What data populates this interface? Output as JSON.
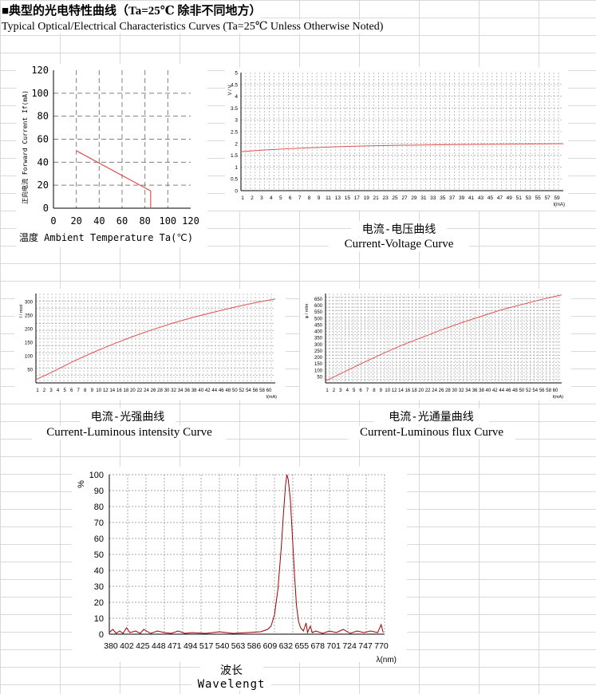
{
  "header": {
    "title_cn": "■典型的光电特性曲线（Ta=25℃ 除非不同地方）",
    "title_en": "Typical Optical/Electrical Characteristics Curves (Ta=25℃ Unless Otherwise Noted)"
  },
  "colors": {
    "curve": "#e05050",
    "dark_curve": "#a00000",
    "grid": "#808080"
  },
  "chart_data": [
    {
      "id": "derating",
      "type": "line",
      "xlabel": "温度 Ambient Temperature Ta(℃)",
      "ylabel": "正向电流 Forward Current If(mA)",
      "xlim": [
        0,
        120
      ],
      "ylim": [
        0,
        120
      ],
      "xticks": [
        "0",
        "20",
        "40",
        "60",
        "80",
        "100",
        "120"
      ],
      "yticks": [
        "0",
        "20",
        "40",
        "60",
        "80",
        "100",
        "120"
      ],
      "grid": true,
      "series": [
        {
          "points": [
            [
              20,
              50
            ],
            [
              85,
              15
            ],
            [
              85,
              0
            ]
          ]
        }
      ]
    },
    {
      "id": "iv",
      "type": "line",
      "title_cn": "电流-电压曲线",
      "title_en": "Current-Voltage Curve",
      "xlabel": "I(mA)",
      "ylabel": "V / V",
      "xlim": [
        1,
        60
      ],
      "ylim": [
        0,
        5
      ],
      "xticks": [
        "1",
        "2",
        "3",
        "4",
        "5",
        "6",
        "7",
        "8",
        "9",
        "11",
        "13",
        "15",
        "17",
        "19",
        "21",
        "23",
        "25",
        "27",
        "29",
        "31",
        "33",
        "35",
        "37",
        "39",
        "41",
        "43",
        "45",
        "47",
        "49",
        "51",
        "53",
        "55",
        "57",
        "59"
      ],
      "yticks": [
        "0",
        "0.5",
        "1",
        "1.5",
        "2",
        "2.5",
        "3",
        "3.5",
        "4",
        "4.5",
        "5"
      ],
      "grid": true,
      "series": [
        {
          "points": [
            [
              1,
              1.65
            ],
            [
              5,
              1.72
            ],
            [
              10,
              1.78
            ],
            [
              15,
              1.83
            ],
            [
              20,
              1.87
            ],
            [
              25,
              1.9
            ],
            [
              30,
              1.92
            ],
            [
              40,
              1.95
            ],
            [
              50,
              1.97
            ],
            [
              60,
              1.99
            ]
          ]
        }
      ]
    },
    {
      "id": "li",
      "type": "line",
      "title_cn": "电流-光强曲线",
      "title_en": "Current-Luminous intensity Curve",
      "xlabel": "I(mA)",
      "ylabel": "I / mcd",
      "xlim": [
        1,
        60
      ],
      "ylim": [
        0,
        330
      ],
      "xticks": [
        "1",
        "2",
        "3",
        "4",
        "5",
        "6",
        "7",
        "8",
        "9",
        "10",
        "12",
        "14",
        "16",
        "18",
        "20",
        "22",
        "24",
        "26",
        "28",
        "30",
        "32",
        "34",
        "36",
        "38",
        "40",
        "42",
        "44",
        "46",
        "48",
        "50",
        "52",
        "54",
        "56",
        "58",
        "60"
      ],
      "yticks": [
        "50",
        "100",
        "150",
        "200",
        "250",
        "300"
      ],
      "grid": true,
      "series": [
        {
          "points": [
            [
              1,
              12
            ],
            [
              5,
              40
            ],
            [
              10,
              78
            ],
            [
              15,
              112
            ],
            [
              20,
              143
            ],
            [
              25,
              172
            ],
            [
              30,
              198
            ],
            [
              35,
              222
            ],
            [
              40,
              243
            ],
            [
              45,
              262
            ],
            [
              50,
              280
            ],
            [
              55,
              296
            ],
            [
              60,
              310
            ]
          ]
        }
      ]
    },
    {
      "id": "lf",
      "type": "line",
      "title_cn": "电流-光通量曲线",
      "title_en": "Current-Luminous flux Curve",
      "xlabel": "I(mA)",
      "ylabel": "φ / mlm",
      "xlim": [
        1,
        60
      ],
      "ylim": [
        0,
        690
      ],
      "xticks": [
        "1",
        "2",
        "3",
        "4",
        "5",
        "6",
        "7",
        "8",
        "9",
        "10",
        "12",
        "14",
        "16",
        "18",
        "20",
        "22",
        "24",
        "26",
        "28",
        "30",
        "32",
        "34",
        "36",
        "38",
        "40",
        "42",
        "44",
        "46",
        "48",
        "50",
        "52",
        "54",
        "56",
        "58",
        "60"
      ],
      "yticks": [
        "50",
        "100",
        "150",
        "200",
        "250",
        "300",
        "350",
        "400",
        "450",
        "500",
        "550",
        "600",
        "650"
      ],
      "grid": true,
      "series": [
        {
          "points": [
            [
              1,
              15
            ],
            [
              5,
              75
            ],
            [
              10,
              150
            ],
            [
              15,
              222
            ],
            [
              20,
              290
            ],
            [
              25,
              350
            ],
            [
              30,
              410
            ],
            [
              35,
              465
            ],
            [
              40,
              515
            ],
            [
              45,
              565
            ],
            [
              50,
              605
            ],
            [
              55,
              645
            ],
            [
              60,
              680
            ]
          ]
        }
      ]
    },
    {
      "id": "spectrum",
      "type": "line",
      "title_cn": "波长",
      "title_en": "Wavelengt",
      "xlabel": "λ(nm)",
      "ylabel": "%",
      "xlim": [
        380,
        780
      ],
      "ylim": [
        0,
        100
      ],
      "xticks": [
        "380",
        "402",
        "425",
        "448",
        "471",
        "494",
        "517",
        "540",
        "563",
        "586",
        "609",
        "632",
        "655",
        "678",
        "701",
        "724",
        "747",
        "770"
      ],
      "yticks": [
        "0",
        "10",
        "20",
        "30",
        "40",
        "50",
        "60",
        "70",
        "80",
        "90",
        "100"
      ],
      "grid": true,
      "series": [
        {
          "points": [
            [
              380,
              1
            ],
            [
              385,
              3
            ],
            [
              390,
              0.5
            ],
            [
              395,
              2
            ],
            [
              400,
              0.5
            ],
            [
              405,
              4
            ],
            [
              410,
              1
            ],
            [
              418,
              2
            ],
            [
              425,
              0.5
            ],
            [
              430,
              3
            ],
            [
              440,
              0.5
            ],
            [
              450,
              2
            ],
            [
              460,
              1
            ],
            [
              470,
              0.5
            ],
            [
              480,
              2
            ],
            [
              490,
              0.5
            ],
            [
              500,
              1
            ],
            [
              520,
              0.5
            ],
            [
              540,
              1.5
            ],
            [
              560,
              0.5
            ],
            [
              580,
              1
            ],
            [
              600,
              1.5
            ],
            [
              610,
              3
            ],
            [
              615,
              5
            ],
            [
              620,
              12
            ],
            [
              625,
              28
            ],
            [
              630,
              55
            ],
            [
              633,
              75
            ],
            [
              636,
              93
            ],
            [
              638,
              100
            ],
            [
              640,
              97
            ],
            [
              643,
              85
            ],
            [
              646,
              62
            ],
            [
              649,
              38
            ],
            [
              652,
              18
            ],
            [
              655,
              8
            ],
            [
              658,
              4
            ],
            [
              662,
              2
            ],
            [
              666,
              7
            ],
            [
              668,
              1
            ],
            [
              672,
              5
            ],
            [
              675,
              1
            ],
            [
              680,
              2
            ],
            [
              690,
              0.5
            ],
            [
              700,
              2
            ],
            [
              710,
              1
            ],
            [
              720,
              3
            ],
            [
              730,
              0.5
            ],
            [
              740,
              2
            ],
            [
              750,
              1
            ],
            [
              760,
              2
            ],
            [
              770,
              1
            ],
            [
              775,
              6
            ],
            [
              778,
              1
            ]
          ]
        }
      ]
    }
  ]
}
